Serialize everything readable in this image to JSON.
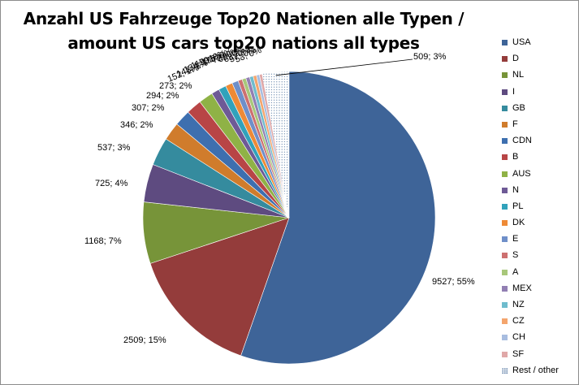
{
  "title": {
    "line1": "Anzahl US Fahrzeuge Top20 Nationen alle Typen /",
    "line2": "amount US cars top20 nations all types"
  },
  "chart_data": {
    "type": "pie",
    "title": "Anzahl US Fahrzeuge Top20 Nationen alle Typen / amount US cars top20 nations all types",
    "legend_position": "right",
    "start_angle_deg": 0,
    "direction": "clockwise",
    "slices": [
      {
        "name": "USA",
        "value": 9527,
        "pct": 55,
        "label": "9527; 55%",
        "color": "#3e6498",
        "pattern": "solid"
      },
      {
        "name": "D",
        "value": 2509,
        "pct": 15,
        "label": "2509; 15%",
        "color": "#943c3b",
        "pattern": "solid"
      },
      {
        "name": "NL",
        "value": 1168,
        "pct": 7,
        "label": "1168; 7%",
        "color": "#779439",
        "pattern": "solid"
      },
      {
        "name": "I",
        "value": 725,
        "pct": 4,
        "label": "725; 4%",
        "color": "#5e4b80",
        "pattern": "solid"
      },
      {
        "name": "GB",
        "value": 537,
        "pct": 3,
        "label": "537; 3%",
        "color": "#358b9e",
        "pattern": "solid"
      },
      {
        "name": "F",
        "value": 346,
        "pct": 2,
        "label": "346; 2%",
        "color": "#d07c2c",
        "pattern": "solid"
      },
      {
        "name": "CDN",
        "value": 307,
        "pct": 2,
        "label": "307; 2%",
        "color": "#3e6faf",
        "pattern": "solid"
      },
      {
        "name": "B",
        "value": 294,
        "pct": 2,
        "label": "294; 2%",
        "color": "#b84546",
        "pattern": "solid"
      },
      {
        "name": "AUS",
        "value": 273,
        "pct": 2,
        "label": "273; 2%",
        "color": "#8fb246",
        "pattern": "solid"
      },
      {
        "name": "N",
        "value": 152,
        "pct": 1,
        "label": "152; 1%",
        "color": "#6e5a96",
        "pattern": "solid"
      },
      {
        "name": "PL",
        "value": 143,
        "pct": 1,
        "label": "143; 1%",
        "color": "#31a2bb",
        "pattern": "solid"
      },
      {
        "name": "DK",
        "value": 134,
        "pct": 1,
        "label": "134; 1%",
        "color": "#ee8a36",
        "pattern": "solid"
      },
      {
        "name": "E",
        "value": 119,
        "pct": 1,
        "label": "119; 1%",
        "color": "#6f8fc9",
        "pattern": "solid"
      },
      {
        "name": "S",
        "value": 79,
        "pct": 0,
        "label": "79; 0%",
        "color": "#cd7070",
        "pattern": "solid"
      },
      {
        "name": "A",
        "value": 75,
        "pct": 0,
        "label": "75; 0%",
        "color": "#a8c77a",
        "pattern": "solid"
      },
      {
        "name": "MEX",
        "value": 72,
        "pct": 0,
        "label": "72; 0%",
        "color": "#927fb3",
        "pattern": "solid"
      },
      {
        "name": "NZ",
        "value": 69,
        "pct": 0,
        "label": "69; 0%",
        "color": "#6fbccd",
        "pattern": "solid"
      },
      {
        "name": "CZ",
        "value": 63,
        "pct": 0,
        "label": "63; 0%",
        "color": "#f4a56d",
        "pattern": "solid"
      },
      {
        "name": "CH",
        "value": 57,
        "pct": 0,
        "label": "57; 0%",
        "color": "#a8bde0",
        "pattern": "solid"
      },
      {
        "name": "SF",
        "value": 53,
        "pct": 0,
        "label": "53; 0%",
        "color": "#e0a8a8",
        "pattern": "solid"
      },
      {
        "name": "Rest / other",
        "value": 509,
        "pct": 3,
        "label": "509; 3%",
        "color": "#4a6f9c",
        "pattern": "dotted"
      }
    ]
  }
}
